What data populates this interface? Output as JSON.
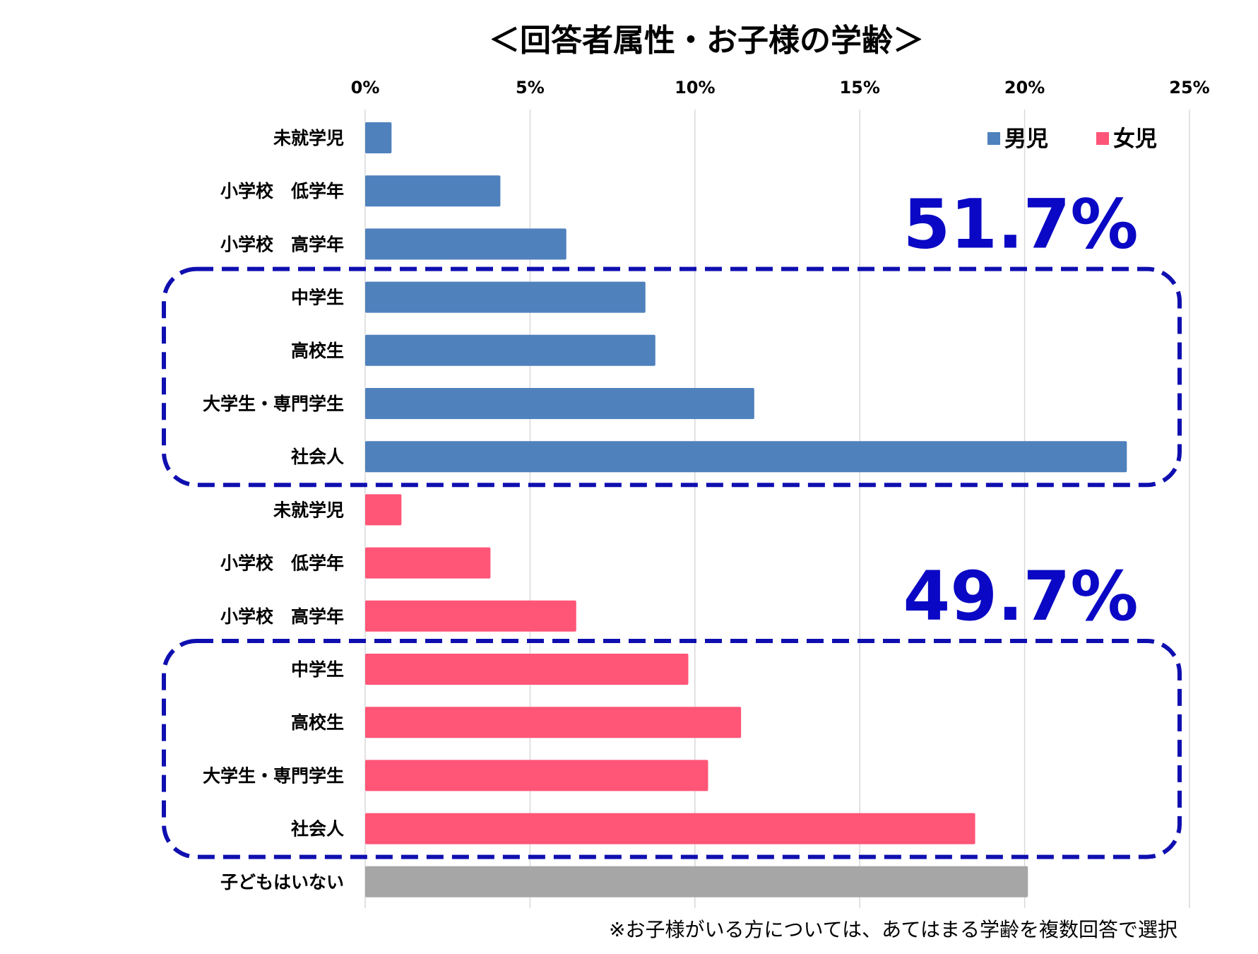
{
  "chart_data": {
    "type": "bar",
    "orientation": "horizontal",
    "title": "＜回答者属性・お子様の学齢＞",
    "xlim": [
      0,
      25
    ],
    "x_ticks": [
      "0%",
      "5%",
      "10%",
      "15%",
      "20%",
      "25%"
    ],
    "unit": "%",
    "grid": true,
    "legend_position": "top-right",
    "legend": [
      {
        "name": "男児",
        "color": "#4f81bd"
      },
      {
        "name": "女児",
        "color": "#ff5577"
      }
    ],
    "colors": {
      "boys": "#4f81bd",
      "girls": "#ff5577",
      "none": "#a6a6a6",
      "highlight": "#0f0fb0"
    },
    "bars": [
      {
        "category": "未就学児",
        "series": "boys",
        "value": 0.8
      },
      {
        "category": "小学校　低学年",
        "series": "boys",
        "value": 4.1
      },
      {
        "category": "小学校　高学年",
        "series": "boys",
        "value": 6.1
      },
      {
        "category": "中学生",
        "series": "boys",
        "value": 8.5
      },
      {
        "category": "高校生",
        "series": "boys",
        "value": 8.8
      },
      {
        "category": "大学生・専門学生",
        "series": "boys",
        "value": 11.8
      },
      {
        "category": "社会人",
        "series": "boys",
        "value": 23.1
      },
      {
        "category": "未就学児",
        "series": "girls",
        "value": 1.1
      },
      {
        "category": "小学校　低学年",
        "series": "girls",
        "value": 3.8
      },
      {
        "category": "小学校　高学年",
        "series": "girls",
        "value": 6.4
      },
      {
        "category": "中学生",
        "series": "girls",
        "value": 9.8
      },
      {
        "category": "高校生",
        "series": "girls",
        "value": 11.4
      },
      {
        "category": "大学生・専門学生",
        "series": "girls",
        "value": 10.4
      },
      {
        "category": "社会人",
        "series": "girls",
        "value": 18.5
      },
      {
        "category": "子どもはいない",
        "series": "none",
        "value": 20.1
      }
    ],
    "highlights": [
      {
        "label": "51.7%",
        "series": "boys",
        "from": "中学生",
        "to": "社会人"
      },
      {
        "label": "49.7%",
        "series": "girls",
        "from": "中学生",
        "to": "社会人"
      }
    ],
    "footnote": "※お子様がいる方については、あてはまる学齢を複数回答で選択"
  }
}
